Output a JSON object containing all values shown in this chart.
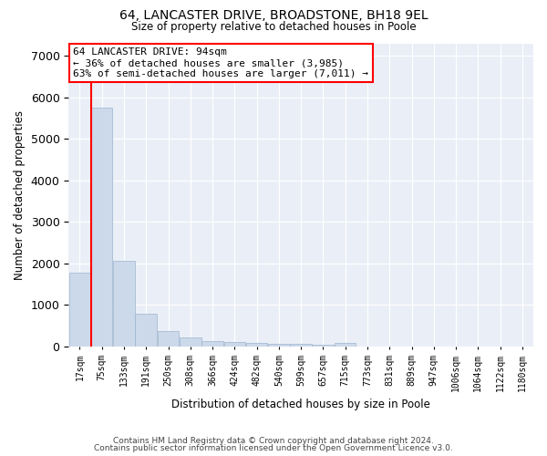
{
  "title_line1": "64, LANCASTER DRIVE, BROADSTONE, BH18 9EL",
  "title_line2": "Size of property relative to detached houses in Poole",
  "xlabel": "Distribution of detached houses by size in Poole",
  "ylabel": "Number of detached properties",
  "categories": [
    "17sqm",
    "75sqm",
    "133sqm",
    "191sqm",
    "250sqm",
    "308sqm",
    "366sqm",
    "424sqm",
    "482sqm",
    "540sqm",
    "599sqm",
    "657sqm",
    "715sqm",
    "773sqm",
    "831sqm",
    "889sqm",
    "947sqm",
    "1006sqm",
    "1064sqm",
    "1122sqm",
    "1180sqm"
  ],
  "values": [
    1780,
    5750,
    2060,
    780,
    370,
    210,
    135,
    105,
    90,
    70,
    55,
    50,
    80,
    0,
    0,
    0,
    0,
    0,
    0,
    0,
    0
  ],
  "bar_color": "#ccd9ea",
  "bar_edgecolor": "#9db4ce",
  "vline_x": 1.0,
  "annotation_text": "64 LANCASTER DRIVE: 94sqm\n← 36% of detached houses are smaller (3,985)\n63% of semi-detached houses are larger (7,011) →",
  "annotation_box_color": "white",
  "annotation_box_edgecolor": "red",
  "vline_color": "red",
  "ylim": [
    0,
    7300
  ],
  "yticks": [
    0,
    1000,
    2000,
    3000,
    4000,
    5000,
    6000,
    7000
  ],
  "background_color": "#eaeff7",
  "grid_color": "white",
  "footer_line1": "Contains HM Land Registry data © Crown copyright and database right 2024.",
  "footer_line2": "Contains public sector information licensed under the Open Government Licence v3.0."
}
